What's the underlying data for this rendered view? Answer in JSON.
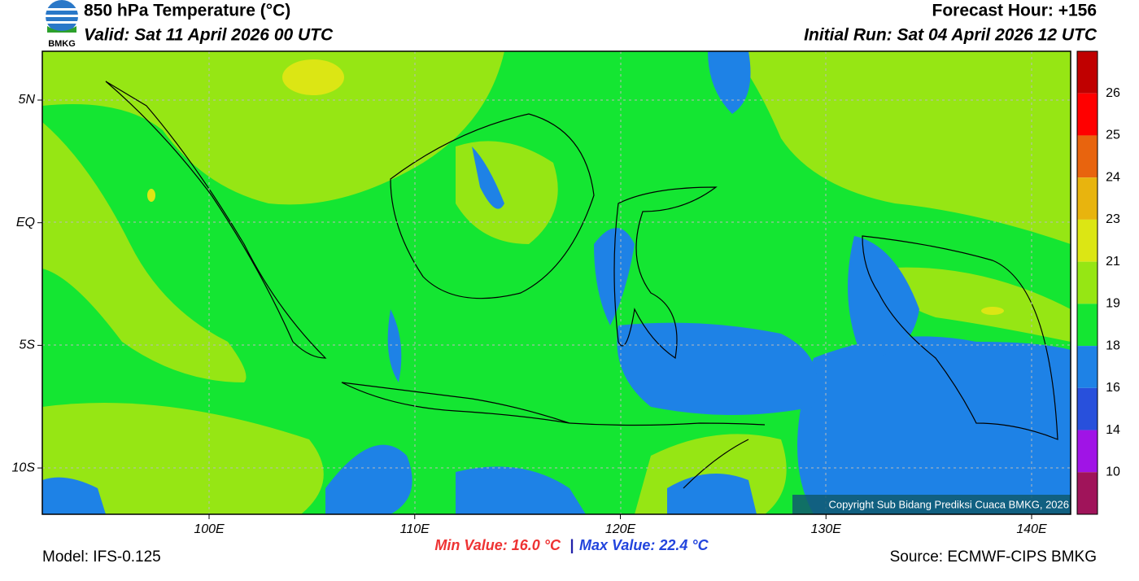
{
  "header": {
    "title": "850 hPa Temperature (°C)",
    "valid": "Valid: Sat 11 April 2026 00 UTC",
    "forecast_hour": "Forecast Hour: +156",
    "initial_run": "Initial Run: Sat 04 April 2026 12 UTC",
    "logo_text": "BMKG"
  },
  "map": {
    "lat_labels": [
      "5N",
      "EQ",
      "5S",
      "10S"
    ],
    "lon_labels": [
      "100E",
      "110E",
      "120E",
      "130E",
      "140E"
    ],
    "copyright": "Copyright Sub Bidang Prediksi Cuaca BMKG, 2026"
  },
  "colorbar": {
    "colors": [
      "#c00000",
      "#ff0000",
      "#e8640e",
      "#e8b40e",
      "#dce614",
      "#96e614",
      "#14e632",
      "#1e82e6",
      "#2850dc",
      "#a014e6",
      "#a0145a"
    ],
    "labels": [
      26,
      25,
      24,
      23,
      21,
      19,
      18,
      16,
      14,
      10
    ]
  },
  "footer": {
    "min_value": "Min Value: 16.0 °C",
    "separator": "|",
    "max_value": "Max Value: 22.4 °C",
    "model": "Model: IFS-0.125",
    "source": "Source: ECMWF-CIPS BMKG"
  }
}
